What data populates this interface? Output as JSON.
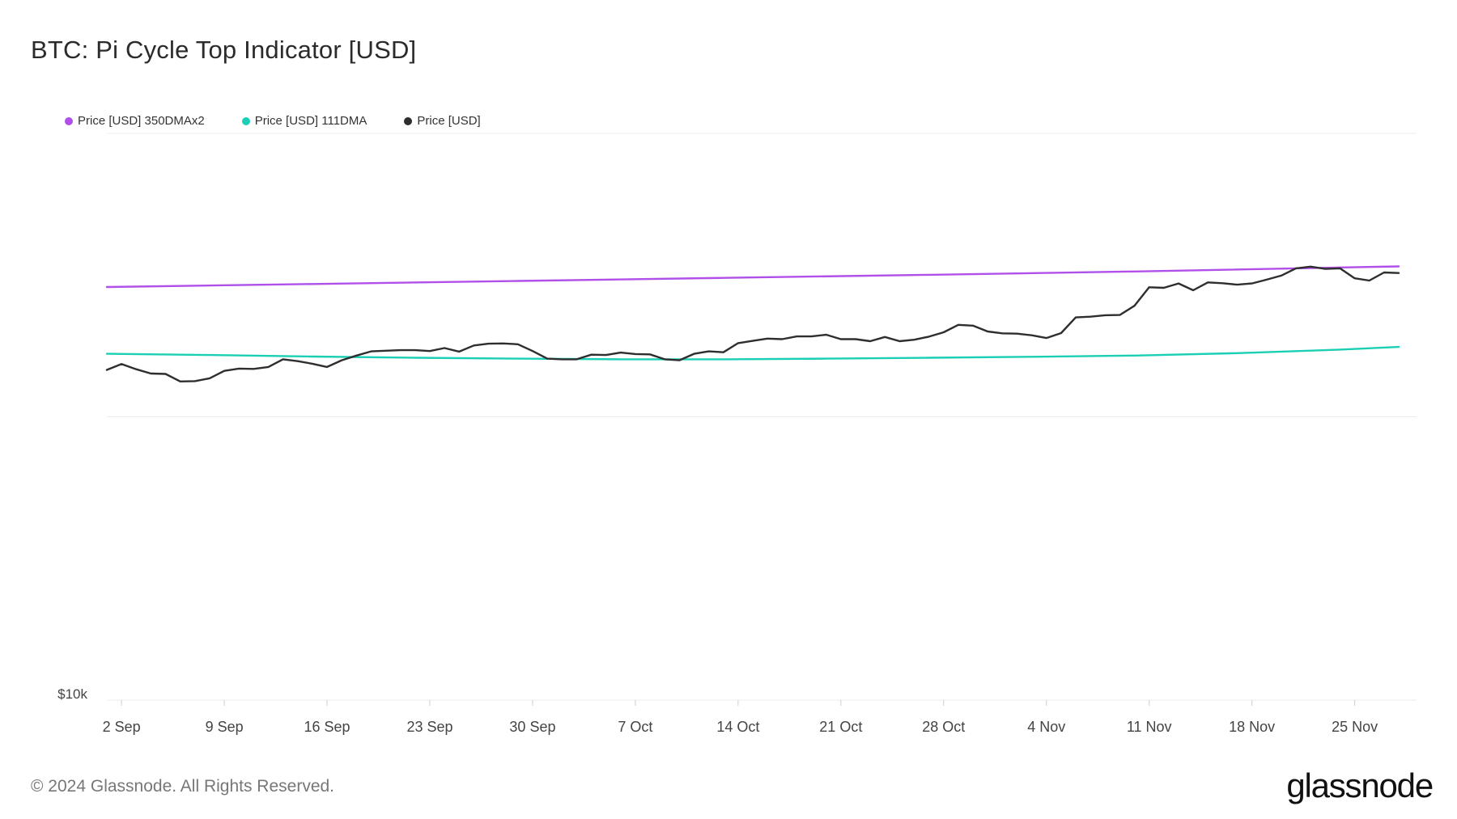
{
  "header": {
    "title": "BTC: Pi Cycle Top Indicator [USD]"
  },
  "footer": {
    "copyright": "© 2024 Glassnode. All Rights Reserved.",
    "brand": "glassnode"
  },
  "colors": {
    "ma350x2": "#b150e8",
    "ma111": "#1bcfb4",
    "price": "#2e2e2e",
    "grid": "#ececec",
    "axis_text": "#444"
  },
  "chart_data": {
    "type": "line",
    "title": "BTC: Pi Cycle Top Indicator [USD]",
    "xlabel": "",
    "ylabel": "",
    "scale": "log",
    "ylim": [
      10000,
      200000
    ],
    "y_tick_labels": [
      {
        "value": 10000,
        "label": "$10k"
      }
    ],
    "x_tick_labels": [
      "2 Sep",
      "9 Sep",
      "16 Sep",
      "23 Sep",
      "30 Sep",
      "7 Oct",
      "14 Oct",
      "21 Oct",
      "28 Oct",
      "4 Nov",
      "11 Nov",
      "18 Nov",
      "25 Nov"
    ],
    "x_tick_dates": [
      "2024-09-02",
      "2024-09-09",
      "2024-09-16",
      "2024-09-23",
      "2024-09-30",
      "2024-10-07",
      "2024-10-14",
      "2024-10-21",
      "2024-10-28",
      "2024-11-04",
      "2024-11-11",
      "2024-11-18",
      "2024-11-25"
    ],
    "x_range": [
      "2024-09-01",
      "2024-11-28"
    ],
    "legend_position": "top-left",
    "series": [
      {
        "name": "Price [USD] 350DMAx2",
        "color": "#b150e8",
        "x": [
          "2024-09-01",
          "2024-09-15",
          "2024-09-29",
          "2024-10-13",
          "2024-10-27",
          "2024-11-10",
          "2024-11-28"
        ],
        "values": [
          88800,
          90200,
          91700,
          93200,
          94700,
          96400,
          99000
        ]
      },
      {
        "name": "Price [USD] 111DMA",
        "color": "#1bcfb4",
        "x": [
          "2024-09-01",
          "2024-09-08",
          "2024-09-15",
          "2024-09-22",
          "2024-09-29",
          "2024-10-06",
          "2024-10-13",
          "2024-10-20",
          "2024-10-27",
          "2024-11-03",
          "2024-11-10",
          "2024-11-17",
          "2024-11-24",
          "2024-11-28"
        ],
        "values": [
          62400,
          62000,
          61500,
          61100,
          60800,
          60600,
          60600,
          60800,
          61100,
          61400,
          61800,
          62600,
          63800,
          64700
        ]
      },
      {
        "name": "Price [USD]",
        "color": "#2e2e2e",
        "x": [
          "2024-09-01",
          "2024-09-02",
          "2024-09-03",
          "2024-09-04",
          "2024-09-05",
          "2024-09-06",
          "2024-09-07",
          "2024-09-08",
          "2024-09-09",
          "2024-09-10",
          "2024-09-11",
          "2024-09-12",
          "2024-09-13",
          "2024-09-14",
          "2024-09-15",
          "2024-09-16",
          "2024-09-17",
          "2024-09-18",
          "2024-09-19",
          "2024-09-20",
          "2024-09-21",
          "2024-09-22",
          "2024-09-23",
          "2024-09-24",
          "2024-09-25",
          "2024-09-26",
          "2024-09-27",
          "2024-09-28",
          "2024-09-29",
          "2024-09-30",
          "2024-10-01",
          "2024-10-02",
          "2024-10-03",
          "2024-10-04",
          "2024-10-05",
          "2024-10-06",
          "2024-10-07",
          "2024-10-08",
          "2024-10-09",
          "2024-10-10",
          "2024-10-11",
          "2024-10-12",
          "2024-10-13",
          "2024-10-14",
          "2024-10-15",
          "2024-10-16",
          "2024-10-17",
          "2024-10-18",
          "2024-10-19",
          "2024-10-20",
          "2024-10-21",
          "2024-10-22",
          "2024-10-23",
          "2024-10-24",
          "2024-10-25",
          "2024-10-26",
          "2024-10-27",
          "2024-10-28",
          "2024-10-29",
          "2024-10-30",
          "2024-10-31",
          "2024-11-01",
          "2024-11-02",
          "2024-11-03",
          "2024-11-04",
          "2024-11-05",
          "2024-11-06",
          "2024-11-07",
          "2024-11-08",
          "2024-11-09",
          "2024-11-10",
          "2024-11-11",
          "2024-11-12",
          "2024-11-13",
          "2024-11-14",
          "2024-11-15",
          "2024-11-16",
          "2024-11-17",
          "2024-11-18",
          "2024-11-19",
          "2024-11-20",
          "2024-11-21",
          "2024-11-22",
          "2024-11-23",
          "2024-11-24",
          "2024-11-25",
          "2024-11-26",
          "2024-11-27",
          "2024-11-28"
        ],
        "values": [
          57300,
          59100,
          57500,
          56200,
          56100,
          53900,
          54000,
          54800,
          57000,
          57700,
          57600,
          58200,
          60600,
          60000,
          59200,
          58200,
          60300,
          61800,
          63200,
          63400,
          63600,
          63600,
          63300,
          64300,
          63100,
          65200,
          65800,
          65900,
          65600,
          63300,
          60800,
          60600,
          60600,
          62100,
          62000,
          62800,
          62300,
          62200,
          60600,
          60300,
          62400,
          63200,
          62900,
          66000,
          66800,
          67600,
          67400,
          68400,
          68400,
          69000,
          67400,
          67400,
          66700,
          68200,
          66700,
          67200,
          68300,
          69900,
          72700,
          72400,
          70200,
          69500,
          69400,
          68800,
          67800,
          69600,
          75600,
          75900,
          76500,
          76600,
          80400,
          88700,
          88400,
          90500,
          87300,
          91000,
          90600,
          89900,
          90500,
          92300,
          94300,
          98000,
          98900,
          97700,
          98000,
          93000,
          91900,
          95900,
          95600
        ]
      }
    ]
  }
}
